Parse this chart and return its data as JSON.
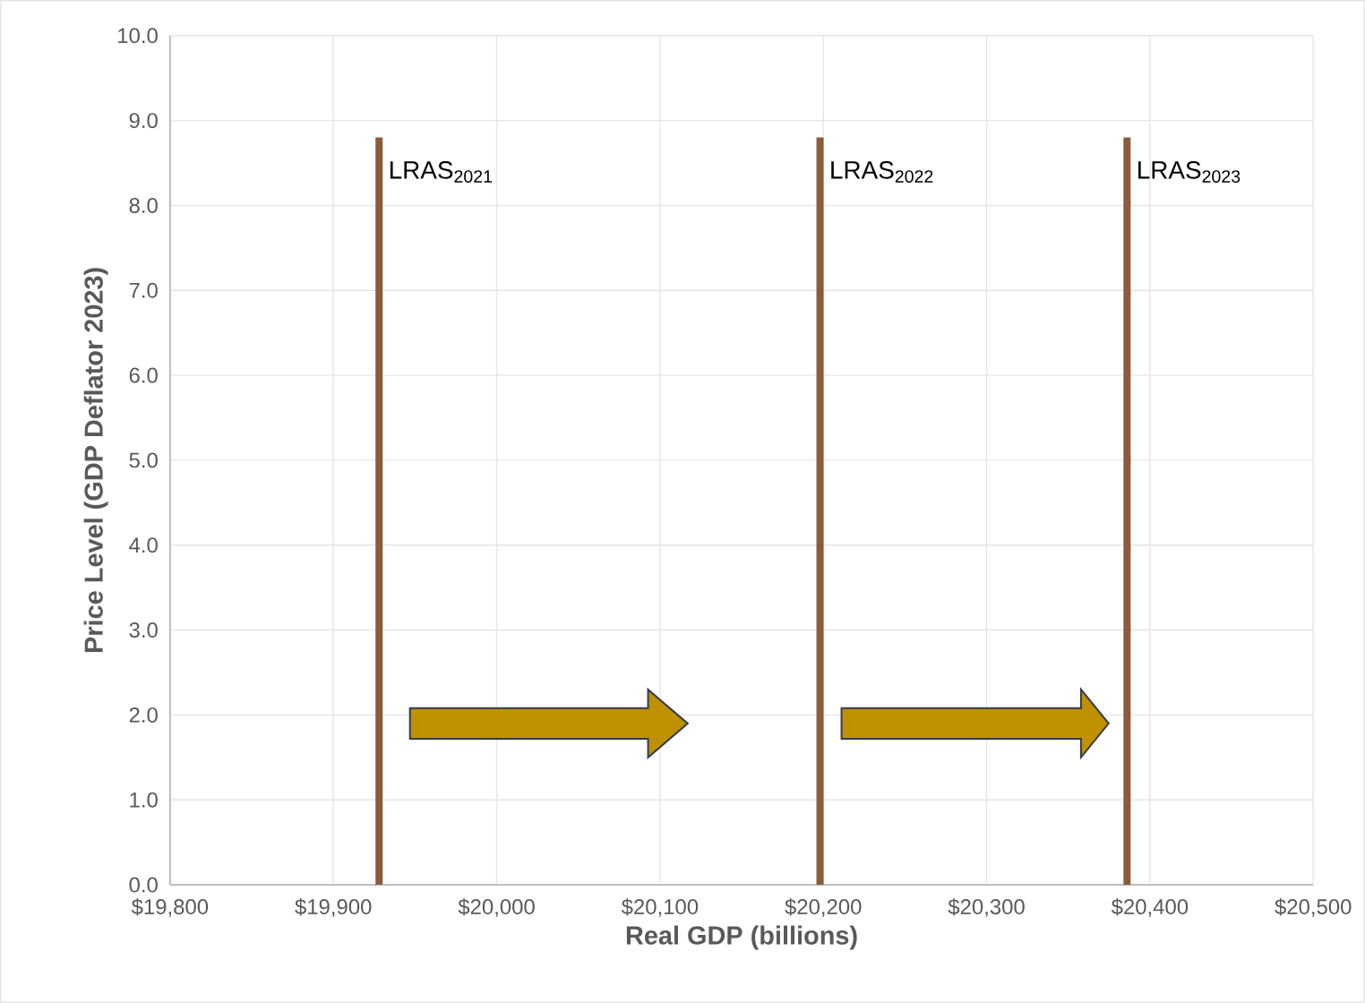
{
  "chart_data": {
    "type": "line",
    "xlabel": "Real GDP (billions)",
    "ylabel": "Price Level (GDP Deflator 2023)",
    "series": [
      {
        "name": "LRAS$_{2021}$",
        "color": "#8c5b3a",
        "x": [
          19928,
          19928
        ],
        "values": [
          0,
          8.8
        ]
      },
      {
        "name": "LRAS$_{2022}$",
        "color": "#8c5b3a",
        "x": [
          20198,
          20198
        ],
        "values": [
          0,
          8.8
        ]
      },
      {
        "name": "LRAS$_{2023}$",
        "color": "#8c5b3a",
        "x": [
          20386,
          20386
        ],
        "values": [
          0,
          8.8
        ]
      }
    ],
    "xlim": [
      19800,
      20500
    ],
    "xticks": [
      {
        "value": 19800,
        "label": "$19,800"
      },
      {
        "value": 19900,
        "label": "$19,900"
      },
      {
        "value": 20000,
        "label": "$20,000"
      },
      {
        "value": 20100,
        "label": "$20,100"
      },
      {
        "value": 20200,
        "label": "$20,200"
      },
      {
        "value": 20300,
        "label": "$20,300"
      },
      {
        "value": 20400,
        "label": "$20,400"
      },
      {
        "value": 20500,
        "label": "$20,500"
      }
    ],
    "ylim": [
      0,
      10
    ],
    "yticks": [
      {
        "value": 0,
        "label": "0.0"
      },
      {
        "value": 1,
        "label": "1.0"
      },
      {
        "value": 2,
        "label": "2.0"
      },
      {
        "value": 3,
        "label": "3.0"
      },
      {
        "value": 4,
        "label": "4.0"
      },
      {
        "value": 5,
        "label": "5.0"
      },
      {
        "value": 6,
        "label": "6.0"
      },
      {
        "value": 7,
        "label": "7.0"
      },
      {
        "value": 8,
        "label": "8.0"
      },
      {
        "value": 9,
        "label": "9.0"
      },
      {
        "value": 10,
        "label": "10.0"
      }
    ],
    "grid": true,
    "marker": "none",
    "line_style": "solid"
  }
}
